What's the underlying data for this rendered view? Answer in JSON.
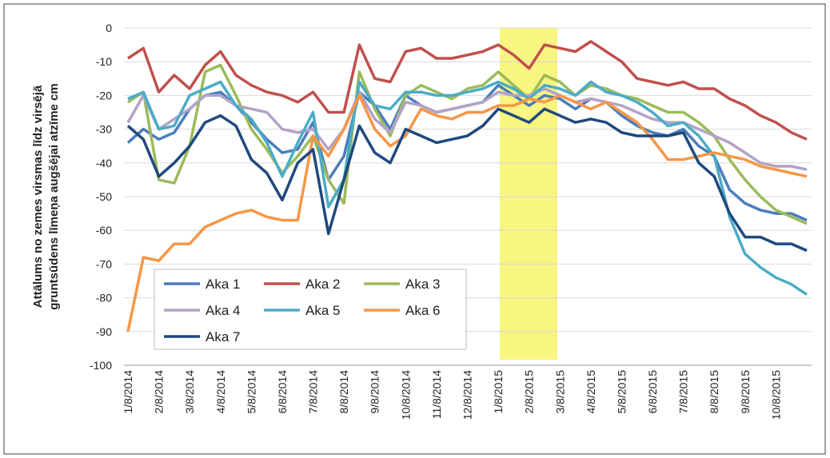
{
  "chart_data": {
    "type": "line",
    "ylabel": [
      "Attālums no zemes virsmas līdz virsējā",
      "gruntsūdens līmeņa augšējai atzīme cm"
    ],
    "categories": [
      "1/8/2014",
      null,
      "2/8/2014",
      null,
      "3/8/2014",
      null,
      "4/8/2014",
      null,
      "5/8/2014",
      null,
      "6/8/2014",
      null,
      "7/8/2014",
      null,
      "8/8/2014",
      null,
      "9/8/2014",
      null,
      "10/8/2014",
      null,
      "11/8/2014",
      null,
      "12/8/2014",
      null,
      "1/8/2015",
      null,
      "2/8/2015",
      null,
      "3/8/2015",
      null,
      "4/8/2015",
      null,
      "5/8/2015",
      null,
      "6/8/2015",
      null,
      "7/8/2015",
      null,
      "8/8/2015",
      null,
      "9/8/2015",
      null,
      "10/8/2015",
      null,
      null
    ],
    "ylim": [
      -100,
      0
    ],
    "yticks": [
      0,
      -10,
      -20,
      -30,
      -40,
      -50,
      -60,
      -70,
      -80,
      -90,
      -100
    ],
    "grid": true,
    "series": [
      {
        "name": "Aka 1",
        "color": "#4a7ebb",
        "values": [
          -34,
          -30,
          -33,
          -31,
          -24,
          -20,
          -19,
          -23,
          -28,
          -33,
          -37,
          -36,
          -28,
          -45,
          -38,
          -19,
          -23,
          -30,
          -20,
          -23,
          -25,
          -24,
          -23,
          -22,
          -17,
          -20,
          -23,
          -20,
          -21,
          -24,
          -21,
          -22,
          -26,
          -29,
          -31,
          -32,
          -30,
          -35,
          -38,
          -48,
          -52,
          -54,
          -55,
          -55,
          -57
        ]
      },
      {
        "name": "Aka 2",
        "color": "#c0504d",
        "values": [
          -9,
          -6,
          -19,
          -14,
          -18,
          -11,
          -7,
          -14,
          -17,
          -19,
          -20,
          -22,
          -19,
          -25,
          -25,
          -5,
          -15,
          -16,
          -7,
          -6,
          -9,
          -9,
          -8,
          -7,
          -5,
          -8,
          -12,
          -5,
          -6,
          -7,
          -4,
          -7,
          -10,
          -15,
          -16,
          -17,
          -16,
          -18,
          -18,
          -21,
          -23,
          -26,
          -28,
          -31,
          -33
        ]
      },
      {
        "name": "Aka 3",
        "color": "#9bbb59",
        "values": [
          -22,
          -19,
          -45,
          -46,
          -35,
          -13,
          -11,
          -20,
          -30,
          -36,
          -43,
          -38,
          -32,
          -45,
          -52,
          -13,
          -24,
          -32,
          -20,
          -17,
          -19,
          -21,
          -18,
          -17,
          -13,
          -17,
          -21,
          -14,
          -16,
          -20,
          -17,
          -18,
          -20,
          -21,
          -23,
          -25,
          -25,
          -28,
          -32,
          -39,
          -45,
          -50,
          -54,
          -56,
          -58
        ]
      },
      {
        "name": "Aka 4",
        "color": "#b3a2c7",
        "values": [
          -28,
          -20,
          -30,
          -27,
          -24,
          -20,
          -20,
          -23,
          -24,
          -25,
          -30,
          -31,
          -30,
          -36,
          -30,
          -19,
          -27,
          -31,
          -22,
          -23,
          -25,
          -24,
          -23,
          -22,
          -19,
          -20,
          -20,
          -18,
          -20,
          -22,
          -21,
          -22,
          -23,
          -25,
          -27,
          -28,
          -28,
          -30,
          -32,
          -34,
          -37,
          -40,
          -41,
          -41,
          -42
        ]
      },
      {
        "name": "Aka 5",
        "color": "#4bacc6",
        "values": [
          -21,
          -19,
          -30,
          -29,
          -20,
          -18,
          -16,
          -23,
          -27,
          -34,
          -44,
          -34,
          -25,
          -53,
          -45,
          -16,
          -23,
          -24,
          -19,
          -19,
          -20,
          -20,
          -19,
          -18,
          -16,
          -18,
          -21,
          -17,
          -18,
          -20,
          -16,
          -19,
          -20,
          -22,
          -25,
          -29,
          -28,
          -32,
          -38,
          -56,
          -67,
          -71,
          -74,
          -76,
          -79
        ]
      },
      {
        "name": "Aka 6",
        "color": "#f79646",
        "values": [
          -90,
          -68,
          -69,
          -64,
          -64,
          -59,
          -57,
          -55,
          -54,
          -56,
          -57,
          -57,
          -32,
          -38,
          -30,
          -20,
          -30,
          -35,
          -32,
          -24,
          -26,
          -27,
          -25,
          -25,
          -23,
          -23,
          -21,
          -22,
          -20,
          -22,
          -24,
          -22,
          -25,
          -28,
          -33,
          -39,
          -39,
          -38,
          -37,
          -38,
          -39,
          -41,
          -42,
          -43,
          -44
        ]
      },
      {
        "name": "Aka 7",
        "color": "#1f497d",
        "values": [
          -29,
          -33,
          -44,
          -40,
          -35,
          -28,
          -26,
          -29,
          -39,
          -43,
          -51,
          -40,
          -36,
          -61,
          -45,
          -29,
          -37,
          -40,
          -30,
          -32,
          -34,
          -33,
          -32,
          -29,
          -24,
          -26,
          -28,
          -24,
          -26,
          -28,
          -27,
          -28,
          -31,
          -32,
          -32,
          -32,
          -31,
          -40,
          -44,
          -55,
          -62,
          -62,
          -64,
          -64,
          -66
        ]
      }
    ]
  }
}
